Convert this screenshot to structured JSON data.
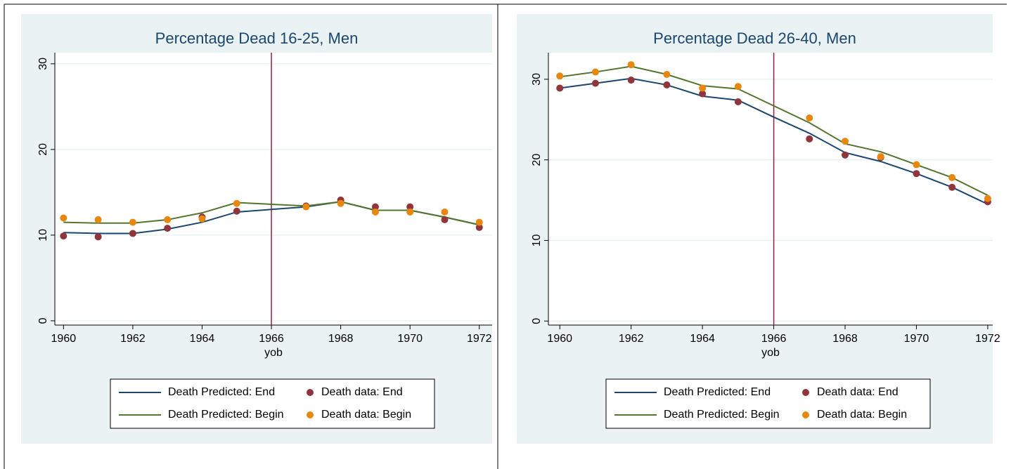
{
  "chart_data": [
    {
      "type": "line",
      "title": "Percentage Dead 16-25, Men",
      "x_label": "yob",
      "x": [
        1960,
        1961,
        1962,
        1963,
        1964,
        1965,
        1966,
        1967,
        1968,
        1969,
        1970,
        1971,
        1972
      ],
      "xlim": [
        1959.75,
        1972.37
      ],
      "xticks": [
        1960,
        1962,
        1964,
        1966,
        1968,
        1970,
        1972
      ],
      "ylim": [
        -0.5,
        31.3
      ],
      "yticks": [
        0,
        10,
        20,
        30
      ],
      "grid": true,
      "xline": 1966,
      "xline_color": "#9b1b4a",
      "series": [
        {
          "name": "Death Predicted: End",
          "color": "#1a476f",
          "mode": "line",
          "values": [
            10.3,
            10.2,
            10.2,
            10.7,
            11.5,
            12.7,
            13.0,
            13.3,
            13.9,
            12.9,
            12.9,
            12.1,
            11.2
          ]
        },
        {
          "name": "Death Predicted: Begin",
          "color": "#55752f",
          "mode": "line",
          "values": [
            11.5,
            11.4,
            11.4,
            11.8,
            12.6,
            13.8,
            13.6,
            13.4,
            13.9,
            12.9,
            12.9,
            12.1,
            11.2
          ]
        },
        {
          "name": "Death data: End",
          "color": "#90353b",
          "mode": "scatter",
          "values": [
            9.9,
            9.8,
            10.2,
            10.8,
            12.1,
            12.8,
            null,
            13.4,
            14.1,
            13.3,
            13.3,
            11.8,
            10.9
          ]
        },
        {
          "name": "Death data: Begin",
          "color": "#e8870e",
          "mode": "scatter",
          "values": [
            12.0,
            11.8,
            11.5,
            11.8,
            11.9,
            13.7,
            null,
            13.3,
            13.7,
            12.7,
            12.7,
            12.7,
            11.5
          ]
        }
      ]
    },
    {
      "type": "line",
      "title": "Percentage Dead 26-40, Men",
      "x_label": "yob",
      "x": [
        1960,
        1961,
        1962,
        1963,
        1964,
        1965,
        1966,
        1967,
        1968,
        1969,
        1970,
        1971,
        1972
      ],
      "xlim": [
        1959.68,
        1972.14
      ],
      "xticks": [
        1960,
        1962,
        1964,
        1966,
        1968,
        1970,
        1972
      ],
      "ylim": [
        -0.5,
        33.3
      ],
      "yticks": [
        0,
        10,
        20,
        30
      ],
      "grid": true,
      "xline": 1966,
      "xline_color": "#9b1b4a",
      "series": [
        {
          "name": "Death Predicted: End",
          "color": "#1a476f",
          "mode": "line",
          "values": [
            28.9,
            29.5,
            30.1,
            29.3,
            27.9,
            27.4,
            25.3,
            23.3,
            20.9,
            19.8,
            18.3,
            16.6,
            14.5
          ]
        },
        {
          "name": "Death Predicted: Begin",
          "color": "#55752f",
          "mode": "line",
          "values": [
            30.3,
            30.9,
            31.6,
            30.6,
            29.2,
            28.8,
            26.7,
            24.6,
            22.0,
            21.0,
            19.4,
            17.8,
            15.6
          ]
        },
        {
          "name": "Death data: End",
          "color": "#90353b",
          "mode": "scatter",
          "values": [
            28.9,
            29.5,
            29.9,
            29.3,
            28.2,
            27.2,
            null,
            22.6,
            20.6,
            20.3,
            18.3,
            16.6,
            14.8
          ]
        },
        {
          "name": "Death data: Begin",
          "color": "#e8870e",
          "mode": "scatter",
          "values": [
            30.4,
            30.9,
            31.8,
            30.6,
            28.9,
            29.1,
            null,
            25.2,
            22.3,
            20.4,
            19.4,
            17.8,
            15.2
          ]
        }
      ]
    }
  ]
}
